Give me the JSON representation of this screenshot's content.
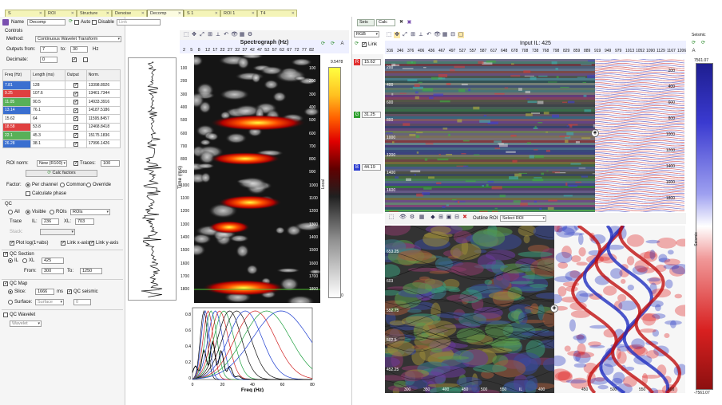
{
  "workflow_tabs": [
    {
      "label": "S",
      "left": 6,
      "width": 50
    },
    {
      "label": "ROI",
      "left": 56,
      "width": 40
    },
    {
      "label": "Structure",
      "left": 96,
      "width": 44
    },
    {
      "label": "Denoise",
      "left": 140,
      "width": 44
    },
    {
      "label": "Decomp",
      "left": 184,
      "width": 46,
      "active": true
    },
    {
      "label": "S 1",
      "left": 230,
      "width": 46
    },
    {
      "label": "ROI 1",
      "left": 276,
      "width": 46
    },
    {
      "label": "T4",
      "left": 322,
      "width": 50
    }
  ],
  "header": {
    "name_label": "Name",
    "name_value": "Decomp",
    "auto_label": "Auto",
    "disable_label": "Disable",
    "link_placeholder": "Link"
  },
  "controls": {
    "title": "Controls",
    "method_label": "Method:",
    "method_value": "Continuous Wavelet Transform",
    "outputs_from_label": "Outputs from:",
    "outputs_from_value": "7",
    "to_label": "to:",
    "to_value": "30",
    "unit": "Hz",
    "decimate_label": "Decimate:",
    "decimate_value": "0"
  },
  "freq_table": {
    "headers": [
      "Freq (Hz)",
      "Length (ms)",
      "Output",
      "Norm."
    ],
    "rows": [
      {
        "freq": "7.81",
        "length": "128",
        "norm": "13398.8926",
        "color": "#3a6fd0"
      },
      {
        "freq": "9.25",
        "length": "107.6",
        "norm": "13461.7344",
        "color": "#e04040"
      },
      {
        "freq": "11.05",
        "length": "90.5",
        "norm": "14933.3916",
        "color": "#58b058"
      },
      {
        "freq": "13.14",
        "length": "76.1",
        "norm": "14187.5186",
        "color": "#3a6fd0"
      },
      {
        "freq": "15.62",
        "length": "64",
        "norm": "11595.8457",
        "color": ""
      },
      {
        "freq": "18.58",
        "length": "53.8",
        "norm": "12468.8418",
        "color": "#e04040"
      },
      {
        "freq": "22.1",
        "length": "45.3",
        "norm": "15175.1836",
        "color": "#58b058"
      },
      {
        "freq": "26.28",
        "length": "38.1",
        "norm": "17996.1426",
        "color": "#3a6fd0"
      }
    ]
  },
  "roi": {
    "roi_norm_label": "ROI norm:",
    "roi_norm_value": "New (R100)",
    "traces_label": "Traces:",
    "traces_value": "100",
    "calc_factors_label": "Calc factors",
    "factor_label": "Factor:",
    "per_channel_label": "Per channel",
    "common_label": "Common",
    "override_label": "Override",
    "calculate_phase_label": "Calculate phase"
  },
  "qc": {
    "title": "QC",
    "all_label": "All",
    "visible_label": "Visible",
    "rois_label": "ROIs",
    "rois_value": "ROIs",
    "trace_label": "Trace",
    "il_label": "IL:",
    "il_value": "236",
    "xl_label": "XL:",
    "xl_value": "703",
    "stack_label": "Stack:",
    "plot_log_label": "Plot log(1+abs)",
    "link_xaxis_label": "Link x-axis",
    "link_yaxis_label": "Link y-axis"
  },
  "qc_section": {
    "title": "QC Section",
    "il_label": "IL",
    "xl_label": "XL",
    "xl_value": "425",
    "from_label": "From:",
    "from_value": "300",
    "to_label": "To:",
    "to_value": "1250"
  },
  "qc_map": {
    "title": "QC Map",
    "slice_label": "Slice:",
    "slice_value": "1666",
    "ms_label": "ms",
    "qc_seismic_label": "QC seismic",
    "surface_label": "Surface:",
    "surface_value": "Surface",
    "offset_value": "0"
  },
  "qc_wavelet": {
    "title": "QC Wavelet",
    "value": "Wavelet"
  },
  "trace": {
    "time_label": "Time (ms)"
  },
  "spectrograph": {
    "title": "Spectrograph (Hz)",
    "freq_ticks": [
      "2",
      "5",
      "8",
      "12",
      "17",
      "22",
      "27",
      "32",
      "37",
      "42",
      "47",
      "52",
      "57",
      "62",
      "67",
      "72",
      "77",
      "82"
    ],
    "time_ticks": [
      "100",
      "200",
      "300",
      "400",
      "500",
      "600",
      "700",
      "800",
      "900",
      "1000",
      "1100",
      "1200",
      "1300",
      "1400",
      "1500",
      "1600",
      "1700",
      "1800"
    ],
    "right_ticks": [
      "100",
      "200",
      "300",
      "400",
      "500",
      "600",
      "700",
      "800",
      "900",
      "1000",
      "1100",
      "1200",
      "1300",
      "1400",
      "1500",
      "1600",
      "1700",
      "1800"
    ],
    "cbar_max": "9.5478",
    "cbar_min": "0",
    "cbar_label": "Local"
  },
  "bottom_plot": {
    "xlabel": "Freq (Hz)",
    "xticks": [
      "0",
      "20",
      "40",
      "60",
      "80"
    ],
    "yticks": [
      "0.8",
      "0.6",
      "0.4",
      "0.2",
      "0"
    ]
  },
  "right": {
    "tabs": [
      "Seis",
      "Calc"
    ],
    "rgb_label": "RGB",
    "link_label": "Link",
    "r_value": "15.62",
    "g_value": "31.25",
    "b_value": "44.19",
    "input_title": "Input   IL: 425",
    "xl_ticks": [
      "316",
      "346",
      "376",
      "406",
      "436",
      "467",
      "497",
      "527",
      "557",
      "587",
      "617",
      "648",
      "678",
      "708",
      "738",
      "768",
      "798",
      "829",
      "859",
      "889",
      "919",
      "949",
      "979",
      "1013",
      "1052",
      "1090",
      "1129",
      "1167",
      "1206"
    ],
    "time_ticks_left": [
      "200",
      "400",
      "600",
      "800",
      "1000",
      "1200",
      "1400",
      "1600"
    ],
    "seis_ticks": [
      "200",
      "400",
      "600",
      "800",
      "1000",
      "1200",
      "1400",
      "1600",
      "1800"
    ],
    "outline_label": "Outline ROI",
    "outline_value": "Select ROI",
    "map_left_ticks": [
      "653.25",
      "603",
      "552.75",
      "502.5",
      "452.25"
    ],
    "map_bottom_ticks": [
      "300",
      "350",
      "400",
      "450",
      "500",
      "550",
      "IL",
      "400"
    ],
    "seis_bottom_ticks": [
      "450",
      "500",
      "550",
      "600"
    ],
    "seismic_label": "Seismic",
    "seismic_max": "7561.07",
    "seismic_min": "-7561.07"
  }
}
